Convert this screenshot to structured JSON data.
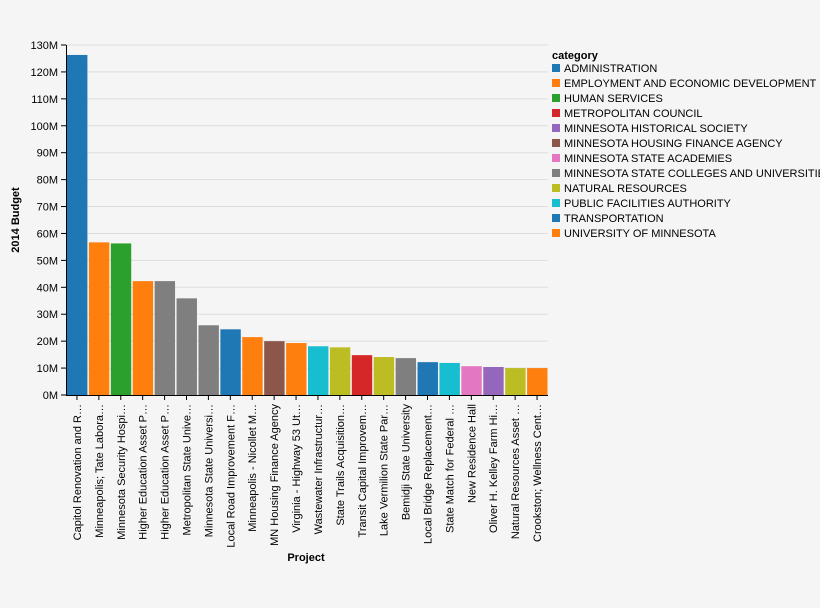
{
  "chart_data": {
    "type": "bar",
    "title": "",
    "xlabel": "Project",
    "ylabel": "2014 Budget",
    "ylim": [
      0,
      130000000
    ],
    "yticks": [
      "0M",
      "10M",
      "20M",
      "30M",
      "40M",
      "50M",
      "60M",
      "70M",
      "80M",
      "90M",
      "100M",
      "110M",
      "120M",
      "130M"
    ],
    "grid": true,
    "legend": {
      "title": "category",
      "placement": "top-right",
      "entries": [
        {
          "label": "ADMINISTRATION",
          "color": "#1f77b4"
        },
        {
          "label": "EMPLOYMENT AND ECONOMIC DEVELOPMENT",
          "color": "#ff7f0e"
        },
        {
          "label": "HUMAN SERVICES",
          "color": "#2ca02c"
        },
        {
          "label": "METROPOLITAN COUNCIL",
          "color": "#d62728"
        },
        {
          "label": "MINNESOTA HISTORICAL SOCIETY",
          "color": "#9467bd"
        },
        {
          "label": "MINNESOTA HOUSING FINANCE AGENCY",
          "color": "#8c564b"
        },
        {
          "label": "MINNESOTA STATE ACADEMIES",
          "color": "#e377c2"
        },
        {
          "label": "MINNESOTA STATE COLLEGES AND UNIVERSITIES",
          "color": "#7f7f7f"
        },
        {
          "label": "NATURAL RESOURCES",
          "color": "#bcbd22"
        },
        {
          "label": "PUBLIC FACILITIES AUTHORITY",
          "color": "#17becf"
        },
        {
          "label": "TRANSPORTATION",
          "color": "#1f77b4"
        },
        {
          "label": "UNIVERSITY OF MINNESOTA",
          "color": "#ff7f0e"
        }
      ]
    },
    "bars": [
      {
        "label": "Capitol Renovation and R…",
        "value": 126300000,
        "category": "ADMINISTRATION"
      },
      {
        "label": "Minneapolis; Tate Labora…",
        "value": 56700000,
        "category": "UNIVERSITY OF MINNESOTA"
      },
      {
        "label": "Minnesota Security Hospi…",
        "value": 56300000,
        "category": "HUMAN SERVICES"
      },
      {
        "label": "Higher Education Asset P…",
        "value": 42300000,
        "category": "UNIVERSITY OF MINNESOTA"
      },
      {
        "label": "Higher Education Asset P…",
        "value": 42300000,
        "category": "MINNESOTA STATE COLLEGES AND UNIVERSITIES"
      },
      {
        "label": "Metropolitan State Unive…",
        "value": 35900000,
        "category": "MINNESOTA STATE COLLEGES AND UNIVERSITIES"
      },
      {
        "label": "Minnesota State Universi…",
        "value": 25900000,
        "category": "MINNESOTA STATE COLLEGES AND UNIVERSITIES"
      },
      {
        "label": "Local Road Improvement F…",
        "value": 24400000,
        "category": "TRANSPORTATION"
      },
      {
        "label": "Minneapolis - Nicollet M…",
        "value": 21500000,
        "category": "EMPLOYMENT AND ECONOMIC DEVELOPMENT"
      },
      {
        "label": "MN Housing Finance Agency",
        "value": 20000000,
        "category": "MINNESOTA HOUSING FINANCE AGENCY"
      },
      {
        "label": "Virginia - Highway 53 Ut…",
        "value": 19300000,
        "category": "EMPLOYMENT AND ECONOMIC DEVELOPMENT"
      },
      {
        "label": "Wastewater Infrastructur…",
        "value": 18100000,
        "category": "PUBLIC FACILITIES AUTHORITY"
      },
      {
        "label": "State Trails Acquisition…",
        "value": 17700000,
        "category": "NATURAL RESOURCES"
      },
      {
        "label": "Transit Capital Improvem…",
        "value": 14800000,
        "category": "METROPOLITAN COUNCIL"
      },
      {
        "label": "Lake Vermilion State Par…",
        "value": 14100000,
        "category": "NATURAL RESOURCES"
      },
      {
        "label": "Bemidji State University",
        "value": 13700000,
        "category": "MINNESOTA STATE COLLEGES AND UNIVERSITIES"
      },
      {
        "label": "Local Bridge Replacement…",
        "value": 12200000,
        "category": "TRANSPORTATION"
      },
      {
        "label": "State Match for Federal …",
        "value": 11900000,
        "category": "PUBLIC FACILITIES AUTHORITY"
      },
      {
        "label": "New Residence Hall",
        "value": 10700000,
        "category": "MINNESOTA STATE ACADEMIES"
      },
      {
        "label": "Oliver H. Kelley Farm Hi…",
        "value": 10400000,
        "category": "MINNESOTA HISTORICAL SOCIETY"
      },
      {
        "label": "Natural Resources Asset …",
        "value": 10000000,
        "category": "NATURAL RESOURCES"
      },
      {
        "label": "Crookston; Wellness Cent…",
        "value": 10000000,
        "category": "UNIVERSITY OF MINNESOTA"
      }
    ]
  }
}
